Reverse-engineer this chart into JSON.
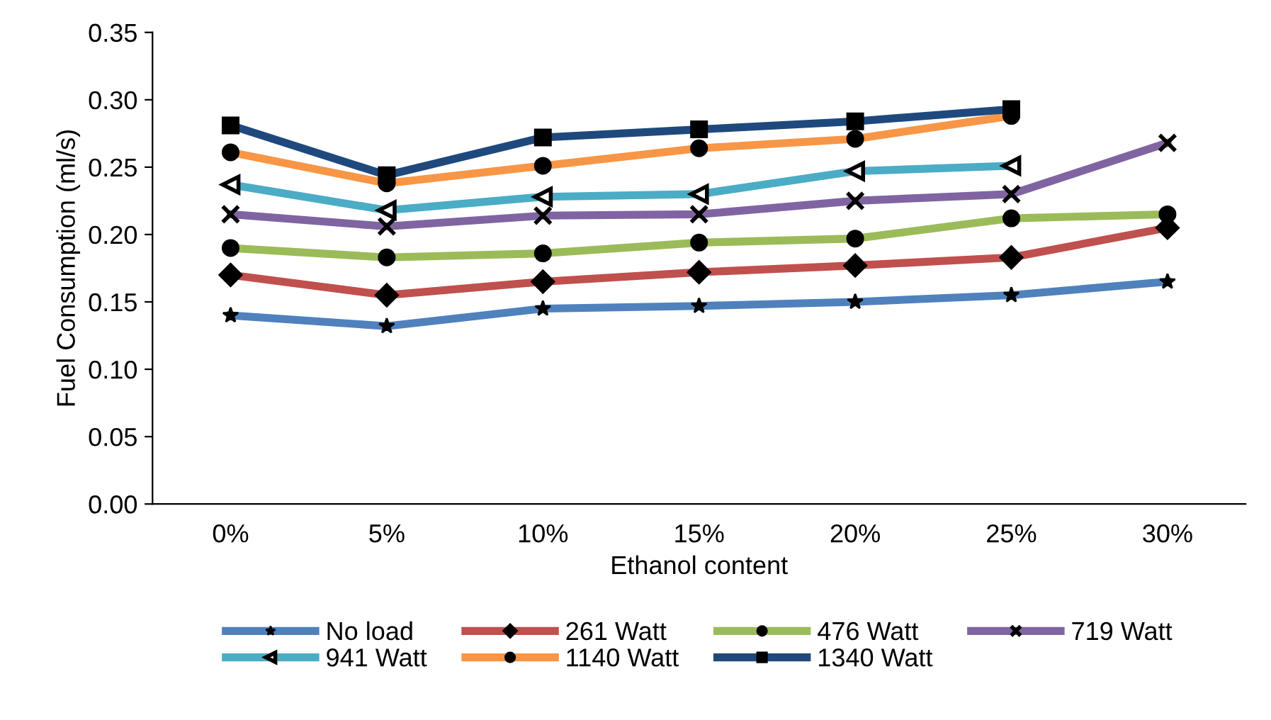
{
  "chart_data": {
    "type": "line",
    "xlabel": "Ethanol content",
    "ylabel": "Fuel Consumption (ml/s)",
    "categories": [
      "0%",
      "5%",
      "10%",
      "15%",
      "20%",
      "25%",
      "30%"
    ],
    "ylim": [
      0,
      0.35
    ],
    "yticks": [
      {
        "value": 0,
        "label": "0.00"
      },
      {
        "value": 0.05,
        "label": "0.05"
      },
      {
        "value": 0.1,
        "label": "0.10"
      },
      {
        "value": 0.15,
        "label": "0.15"
      },
      {
        "value": 0.2,
        "label": "0.20"
      },
      {
        "value": 0.25,
        "label": "0.25"
      },
      {
        "value": 0.3,
        "label": "0.30"
      },
      {
        "value": 0.35,
        "label": "0.35"
      }
    ],
    "grid": false,
    "legend": "bottom",
    "line_style": "solid",
    "series": [
      {
        "name": "No load",
        "color": "#4f81bd",
        "marker": "star",
        "values": [
          0.14,
          0.132,
          0.145,
          0.147,
          0.15,
          0.155,
          0.165
        ]
      },
      {
        "name": "261 Watt",
        "color": "#c0504d",
        "marker": "diamond",
        "values": [
          0.17,
          0.155,
          0.165,
          0.172,
          0.177,
          0.183,
          0.205
        ]
      },
      {
        "name": "476 Watt",
        "color": "#9bbb59",
        "marker": "circle",
        "values": [
          0.19,
          0.183,
          0.186,
          0.194,
          0.197,
          0.212,
          0.215
        ]
      },
      {
        "name": "719 Watt",
        "color": "#8064a2",
        "marker": "cross",
        "values": [
          0.215,
          0.206,
          0.214,
          0.215,
          0.225,
          0.23,
          0.268
        ]
      },
      {
        "name": "941 Watt",
        "color": "#4bacc6",
        "marker": "triangle",
        "values": [
          0.237,
          0.218,
          0.228,
          0.23,
          0.247,
          0.251,
          null
        ]
      },
      {
        "name": "1140 Watt",
        "color": "#f79646",
        "marker": "circle",
        "values": [
          0.261,
          0.238,
          0.251,
          0.264,
          0.271,
          0.288,
          null
        ]
      },
      {
        "name": "1340 Watt",
        "color": "#1f497d",
        "marker": "square",
        "values": [
          0.281,
          0.244,
          0.272,
          0.278,
          0.284,
          0.293,
          null
        ]
      }
    ]
  }
}
